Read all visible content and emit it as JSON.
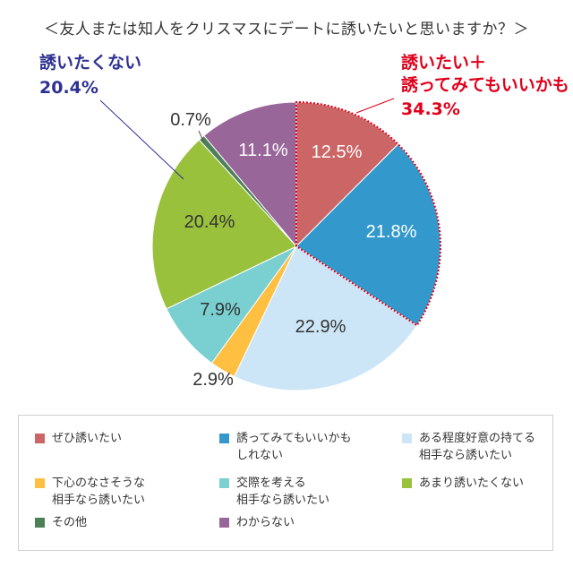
{
  "chart_data": {
    "type": "pie",
    "title": "＜友人または知人をクリスマスにデートに誘いたいと思いますか？＞",
    "slices": [
      {
        "label": "ぜひ誘いたい",
        "value": 12.5,
        "value_label": "12.5%",
        "color": "#cc6666"
      },
      {
        "label": "誘ってみてもいいかも\nしれない",
        "value": 21.8,
        "value_label": "21.8%",
        "color": "#3399cc"
      },
      {
        "label": "ある程度好意の持てる\n相手なら誘いたい",
        "value": 22.9,
        "value_label": "22.9%",
        "color": "#cce6f7"
      },
      {
        "label": "下心のなさそうな\n相手なら誘いたい",
        "value": 2.9,
        "value_label": "2.9%",
        "color": "#ffbf40"
      },
      {
        "label": "交際を考える\n相手なら誘いたい",
        "value": 7.9,
        "value_label": "7.9%",
        "color": "#7acfd1"
      },
      {
        "label": "あまり誘いたくない",
        "value": 20.4,
        "value_label": "20.4%",
        "color": "#99c13c"
      },
      {
        "label": "その他",
        "value": 0.7,
        "value_label": "0.7%",
        "color": "#4d8057"
      },
      {
        "label": "わからない",
        "value": 11.1,
        "value_label": "11.1%",
        "color": "#996699"
      }
    ],
    "annotations": {
      "positive": {
        "text_lines": [
          "誘いたい＋",
          "誘ってみてもいいかも",
          "34.3%"
        ],
        "color": "#e0001b"
      },
      "negative": {
        "text_lines": [
          "誘いたくない",
          "20.4%"
        ],
        "color": "#2e3192"
      }
    }
  }
}
